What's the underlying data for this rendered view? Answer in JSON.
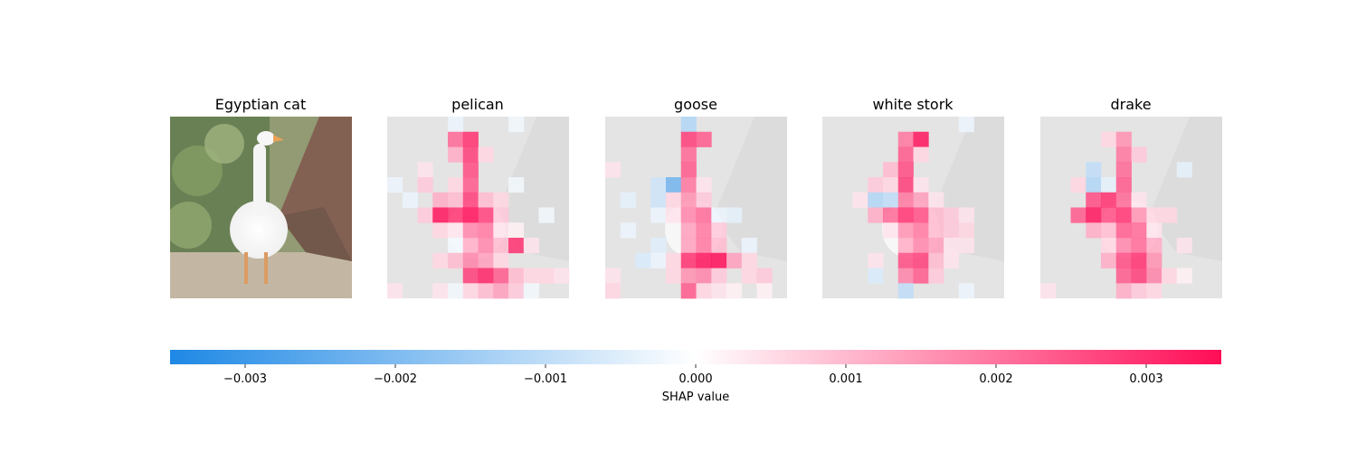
{
  "chart_data": {
    "type": "heatmap",
    "description_source": "SHAP image explanation: original image plus per-class attribution maps",
    "panels": [
      {
        "title": "Egyptian cat",
        "kind": "image"
      },
      {
        "title": "pelican",
        "kind": "shap"
      },
      {
        "title": "goose",
        "kind": "shap"
      },
      {
        "title": "white stork",
        "kind": "shap"
      },
      {
        "title": "drake",
        "kind": "shap"
      }
    ],
    "grid_size": [
      12,
      12
    ],
    "shap_maps": {
      "pelican": [
        [
          0,
          0,
          0,
          0,
          -0.0003,
          0,
          0,
          0,
          -0.0002,
          0,
          0,
          0
        ],
        [
          0,
          0,
          0,
          0,
          0.0022,
          0.003,
          0,
          0,
          0,
          0,
          0,
          0
        ],
        [
          0,
          0,
          0,
          0,
          0.0012,
          0.0028,
          0.0006,
          0,
          0,
          0,
          0,
          0
        ],
        [
          0,
          0,
          0.0004,
          0,
          0,
          0.0026,
          0,
          0,
          0,
          0,
          0,
          0
        ],
        [
          -0.0003,
          0,
          0.0008,
          0,
          0.0006,
          0.0024,
          0,
          0,
          -0.0002,
          0,
          0,
          0
        ],
        [
          0,
          -0.0003,
          0,
          0.0012,
          0.001,
          0.0028,
          0.001,
          0.0006,
          0,
          0,
          0,
          0
        ],
        [
          0,
          0,
          0.0008,
          0.0034,
          0.003,
          0.0036,
          0.0028,
          0.0008,
          0,
          0,
          -0.0002,
          0
        ],
        [
          0,
          0,
          0,
          0.0006,
          0.0004,
          0.0018,
          0.002,
          0.0004,
          0.0002,
          0,
          0,
          0
        ],
        [
          0,
          0,
          0,
          0,
          -0.0002,
          0.0012,
          0.0018,
          0.001,
          0.003,
          0.0004,
          0,
          0
        ],
        [
          0,
          0,
          0,
          0.0006,
          0.001,
          0.0018,
          0.0014,
          0.0006,
          0,
          0,
          0,
          0
        ],
        [
          0,
          0,
          0,
          0,
          0,
          0.0028,
          0.0032,
          0.0024,
          0.001,
          0.0006,
          0.0006,
          0.0004
        ],
        [
          0.0004,
          0,
          0,
          0.0004,
          -0.0002,
          0.0006,
          0.001,
          0.0014,
          0.0008,
          -0.0002,
          0,
          0
        ]
      ],
      "goose": [
        [
          0,
          0,
          0,
          0,
          0,
          -0.0012,
          0,
          0,
          0,
          0,
          0,
          0
        ],
        [
          0,
          0,
          0,
          0,
          0,
          0.0028,
          0.0024,
          0,
          0,
          0,
          0,
          0
        ],
        [
          0,
          0,
          0,
          0,
          0,
          0.0022,
          0,
          0,
          0,
          0,
          0,
          0
        ],
        [
          0.0004,
          0,
          0,
          0,
          0,
          0.0024,
          0,
          0,
          0,
          0,
          0,
          0
        ],
        [
          0,
          0,
          0,
          -0.0008,
          -0.0022,
          0.002,
          0.0004,
          0,
          0,
          0,
          0,
          0
        ],
        [
          0,
          -0.0004,
          0,
          -0.0008,
          0.0006,
          0.0016,
          0.0008,
          0,
          0,
          0,
          0,
          0
        ],
        [
          0,
          0,
          0,
          -0.0003,
          0.0004,
          0.0018,
          0.0022,
          -0.0003,
          -0.0004,
          0,
          0,
          0
        ],
        [
          0,
          -0.0003,
          0,
          0,
          0,
          0.0014,
          0.002,
          0.0008,
          0,
          0,
          0,
          0
        ],
        [
          0,
          0,
          0,
          -0.0005,
          0,
          0.0014,
          0.002,
          0.001,
          0,
          -0.0003,
          0,
          0
        ],
        [
          0,
          0,
          -0.0006,
          -0.0003,
          0.0006,
          0.003,
          0.0034,
          0.0036,
          0.0014,
          0.0006,
          0,
          0
        ],
        [
          0.0004,
          0,
          0,
          0,
          0.0006,
          0.0016,
          0.0018,
          0.0008,
          0,
          0.0006,
          0.0008,
          0
        ],
        [
          0.0006,
          0,
          0,
          0,
          0,
          0.0024,
          0.0006,
          0.0004,
          0.0002,
          0,
          0.0002,
          0
        ]
      ],
      "white stork": [
        [
          0,
          0,
          0,
          0,
          0,
          0,
          0,
          0,
          0,
          -0.0003,
          0,
          0
        ],
        [
          0,
          0,
          0,
          0,
          0,
          0.002,
          0.0034,
          0,
          0,
          0,
          0,
          0
        ],
        [
          0,
          0,
          0,
          0,
          0,
          0.0024,
          0.0006,
          0,
          0,
          0,
          0,
          0
        ],
        [
          0,
          0,
          0,
          0,
          0.001,
          0.0026,
          0,
          0,
          0,
          0,
          0,
          0
        ],
        [
          0,
          0,
          0,
          0.0008,
          0.0006,
          0.0028,
          0.0004,
          0,
          0,
          0,
          0,
          0
        ],
        [
          0,
          0,
          0.0004,
          -0.0012,
          -0.001,
          0.002,
          0.0014,
          0.0004,
          0,
          0,
          0,
          0
        ],
        [
          0,
          0,
          0,
          0.0012,
          0.0022,
          0.003,
          0.0026,
          0.001,
          0.0008,
          0.0004,
          0,
          0
        ],
        [
          0,
          0,
          0,
          0,
          0.0004,
          0.0016,
          0.002,
          0.001,
          0.0008,
          0.0006,
          0,
          0
        ],
        [
          0,
          0,
          0,
          0,
          0,
          0.0012,
          0.0018,
          0.0014,
          0.0004,
          0.0004,
          0,
          0
        ],
        [
          0,
          0,
          0,
          0.0004,
          0,
          0.0026,
          0.0028,
          0.001,
          0.0004,
          0,
          0,
          0
        ],
        [
          0,
          0,
          0,
          -0.0006,
          0,
          0.0018,
          0.0024,
          0.0008,
          0,
          0,
          0,
          0
        ],
        [
          0,
          0,
          0,
          0,
          0,
          -0.001,
          0,
          0,
          0,
          -0.0003,
          0,
          0
        ]
      ],
      "drake": [
        [
          0,
          0,
          0,
          0,
          0,
          0,
          0,
          0,
          0,
          0,
          0,
          0
        ],
        [
          0,
          0,
          0,
          0,
          0.0006,
          0.0016,
          0,
          0,
          0,
          0,
          0,
          0
        ],
        [
          0,
          0,
          0,
          0,
          0,
          0.002,
          0.0008,
          0,
          0,
          0,
          0,
          0
        ],
        [
          0,
          0,
          0,
          -0.001,
          0,
          0.0022,
          0,
          0,
          0,
          -0.0004,
          0,
          0
        ],
        [
          0,
          0,
          0.0006,
          -0.0012,
          -0.0004,
          0.0024,
          0,
          0,
          0,
          0,
          0,
          0
        ],
        [
          0,
          0,
          0,
          0.0026,
          0.003,
          0.0022,
          0.0004,
          0,
          0,
          0,
          0,
          0
        ],
        [
          0,
          0,
          0.0024,
          0.0034,
          0.0026,
          0.003,
          0.0016,
          0.0006,
          0.0006,
          0,
          0,
          0
        ],
        [
          0,
          0,
          0,
          0.0012,
          0.001,
          0.0024,
          0.0022,
          0.0004,
          0,
          0,
          0,
          0
        ],
        [
          0,
          0,
          0,
          0,
          0.0006,
          0.0018,
          0.0022,
          0.0012,
          0,
          0.0004,
          0,
          0
        ],
        [
          0,
          0,
          0,
          0,
          0.0012,
          0.0026,
          0.003,
          0.0016,
          0,
          0,
          0,
          0
        ],
        [
          0,
          0,
          0,
          0,
          0,
          0.0024,
          0.0028,
          0.0018,
          0.0006,
          0.0002,
          0,
          0
        ],
        [
          0.0004,
          0,
          0,
          0,
          0,
          0.0012,
          0.0008,
          0.0006,
          0,
          0,
          0,
          0
        ]
      ]
    },
    "colorbar": {
      "label": "SHAP value",
      "range": [
        -0.0035,
        0.0035
      ],
      "ticks": [
        -0.003,
        -0.002,
        -0.001,
        0.0,
        0.001,
        0.002,
        0.003
      ],
      "tick_labels": [
        "−0.003",
        "−0.002",
        "−0.001",
        "0.000",
        "0.001",
        "0.002",
        "0.003"
      ],
      "negative_color": "#1E88E5",
      "zero_color": "#FFFFFF",
      "positive_color": "#FF0D57",
      "orientation": "horizontal"
    }
  }
}
